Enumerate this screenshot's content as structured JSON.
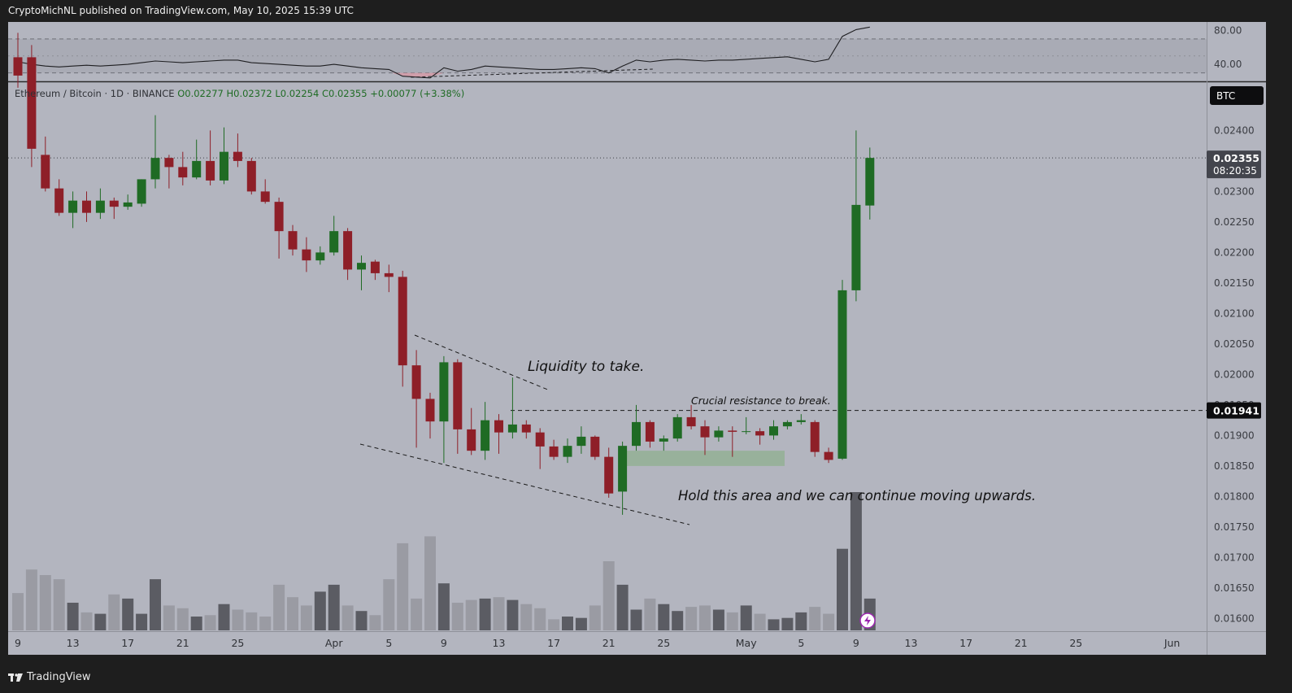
{
  "header": {
    "published_text": "CryptoMichNL published on TradingView.com, May 10, 2025 15:39 UTC"
  },
  "footer": {
    "logo_text": "TradingView"
  },
  "colors": {
    "background": "#b3b5bf",
    "bull": "#1f6b24",
    "bear": "#8e1f28",
    "vol_bull": "#5b5c63",
    "vol_bear": "#9a9ba3",
    "hold_zone": "#8fb08f"
  },
  "chart_data": {
    "type": "candlestick",
    "legend": {
      "symbol": "Ethereum / Bitcoin · 1D · BINANCE",
      "open": "O0.02277",
      "high": "H0.02372",
      "low": "L0.02254",
      "close": "C0.02355",
      "change": "+0.00077 (+3.38%)"
    },
    "currency_badge": "BTC",
    "last_price": {
      "value": "0.02355",
      "countdown": "08:20:35"
    },
    "level_label": {
      "value": 0.01941,
      "text": "0.01941"
    },
    "price_axis": {
      "ylim": [
        0.0157,
        0.0259
      ],
      "ticks": [
        "0.02400",
        "0.02350",
        "0.02300",
        "0.02250",
        "0.02200",
        "0.02150",
        "0.02100",
        "0.02050",
        "0.02000",
        "0.01950",
        "0.01900",
        "0.01850",
        "0.01800",
        "0.01750",
        "0.01700",
        "0.01650",
        "0.01600"
      ]
    },
    "x_axis": {
      "ticks": [
        {
          "index": 0,
          "label": "9"
        },
        {
          "index": 4,
          "label": "13"
        },
        {
          "index": 8,
          "label": "17"
        },
        {
          "index": 12,
          "label": "21"
        },
        {
          "index": 16,
          "label": "25"
        },
        {
          "index": 23,
          "label": "Apr"
        },
        {
          "index": 27,
          "label": "5"
        },
        {
          "index": 31,
          "label": "9"
        },
        {
          "index": 35,
          "label": "13"
        },
        {
          "index": 39,
          "label": "17"
        },
        {
          "index": 43,
          "label": "21"
        },
        {
          "index": 47,
          "label": "25"
        },
        {
          "index": 53,
          "label": "May"
        },
        {
          "index": 57,
          "label": "5"
        },
        {
          "index": 61,
          "label": "9"
        },
        {
          "index": 65,
          "label": "13"
        },
        {
          "index": 69,
          "label": "17"
        },
        {
          "index": 73,
          "label": "21"
        },
        {
          "index": 77,
          "label": "25"
        },
        {
          "index": 84,
          "label": "Jun"
        }
      ]
    },
    "candles": [
      {
        "o": 0.0252,
        "h": 0.0256,
        "l": 0.0247,
        "c": 0.0249
      },
      {
        "o": 0.0252,
        "h": 0.0254,
        "l": 0.0234,
        "c": 0.0237
      },
      {
        "o": 0.0236,
        "h": 0.0239,
        "l": 0.023,
        "c": 0.02305
      },
      {
        "o": 0.02305,
        "h": 0.0232,
        "l": 0.0226,
        "c": 0.02265
      },
      {
        "o": 0.02265,
        "h": 0.023,
        "l": 0.0224,
        "c": 0.02285
      },
      {
        "o": 0.02285,
        "h": 0.023,
        "l": 0.0225,
        "c": 0.02265
      },
      {
        "o": 0.02265,
        "h": 0.02305,
        "l": 0.02255,
        "c": 0.02285
      },
      {
        "o": 0.02285,
        "h": 0.0229,
        "l": 0.02255,
        "c": 0.02275
      },
      {
        "o": 0.02275,
        "h": 0.02295,
        "l": 0.0227,
        "c": 0.02282
      },
      {
        "o": 0.0228,
        "h": 0.0232,
        "l": 0.02275,
        "c": 0.0232
      },
      {
        "o": 0.0232,
        "h": 0.02425,
        "l": 0.02305,
        "c": 0.02355
      },
      {
        "o": 0.02355,
        "h": 0.0236,
        "l": 0.02305,
        "c": 0.0234
      },
      {
        "o": 0.0234,
        "h": 0.02365,
        "l": 0.0231,
        "c": 0.02323
      },
      {
        "o": 0.02323,
        "h": 0.02385,
        "l": 0.0232,
        "c": 0.0235
      },
      {
        "o": 0.0235,
        "h": 0.024,
        "l": 0.0231,
        "c": 0.02318
      },
      {
        "o": 0.02318,
        "h": 0.02405,
        "l": 0.02312,
        "c": 0.02365
      },
      {
        "o": 0.02365,
        "h": 0.02395,
        "l": 0.0234,
        "c": 0.0235
      },
      {
        "o": 0.0235,
        "h": 0.02355,
        "l": 0.02295,
        "c": 0.023
      },
      {
        "o": 0.023,
        "h": 0.0232,
        "l": 0.0228,
        "c": 0.02283
      },
      {
        "o": 0.02283,
        "h": 0.0229,
        "l": 0.0219,
        "c": 0.02235
      },
      {
        "o": 0.02235,
        "h": 0.02245,
        "l": 0.02195,
        "c": 0.02205
      },
      {
        "o": 0.02205,
        "h": 0.02225,
        "l": 0.02168,
        "c": 0.02187
      },
      {
        "o": 0.02187,
        "h": 0.0221,
        "l": 0.0218,
        "c": 0.022
      },
      {
        "o": 0.022,
        "h": 0.0226,
        "l": 0.02195,
        "c": 0.02235
      },
      {
        "o": 0.02235,
        "h": 0.0224,
        "l": 0.02155,
        "c": 0.02172
      },
      {
        "o": 0.02172,
        "h": 0.02195,
        "l": 0.02138,
        "c": 0.02183
      },
      {
        "o": 0.02185,
        "h": 0.02188,
        "l": 0.02155,
        "c": 0.02166
      },
      {
        "o": 0.02166,
        "h": 0.0218,
        "l": 0.02135,
        "c": 0.0216
      },
      {
        "o": 0.0216,
        "h": 0.0217,
        "l": 0.0198,
        "c": 0.02015
      },
      {
        "o": 0.02015,
        "h": 0.0204,
        "l": 0.0188,
        "c": 0.0196
      },
      {
        "o": 0.0196,
        "h": 0.0197,
        "l": 0.01895,
        "c": 0.01923
      },
      {
        "o": 0.01923,
        "h": 0.0203,
        "l": 0.01855,
        "c": 0.0202
      },
      {
        "o": 0.0202,
        "h": 0.02025,
        "l": 0.0187,
        "c": 0.0191
      },
      {
        "o": 0.0191,
        "h": 0.01945,
        "l": 0.01868,
        "c": 0.01875
      },
      {
        "o": 0.01875,
        "h": 0.01955,
        "l": 0.0186,
        "c": 0.01925
      },
      {
        "o": 0.01925,
        "h": 0.01935,
        "l": 0.0187,
        "c": 0.01905
      },
      {
        "o": 0.01905,
        "h": 0.01995,
        "l": 0.01895,
        "c": 0.01918
      },
      {
        "o": 0.01918,
        "h": 0.01925,
        "l": 0.01895,
        "c": 0.01905
      },
      {
        "o": 0.01905,
        "h": 0.01912,
        "l": 0.01845,
        "c": 0.01882
      },
      {
        "o": 0.01882,
        "h": 0.01893,
        "l": 0.0186,
        "c": 0.01865
      },
      {
        "o": 0.01865,
        "h": 0.01895,
        "l": 0.01855,
        "c": 0.01883
      },
      {
        "o": 0.01883,
        "h": 0.01915,
        "l": 0.0187,
        "c": 0.01898
      },
      {
        "o": 0.01898,
        "h": 0.019,
        "l": 0.0186,
        "c": 0.01865
      },
      {
        "o": 0.01865,
        "h": 0.0188,
        "l": 0.01798,
        "c": 0.01805
      },
      {
        "o": 0.01808,
        "h": 0.0189,
        "l": 0.0177,
        "c": 0.01883
      },
      {
        "o": 0.01883,
        "h": 0.0195,
        "l": 0.01875,
        "c": 0.01922
      },
      {
        "o": 0.01922,
        "h": 0.01925,
        "l": 0.0188,
        "c": 0.0189
      },
      {
        "o": 0.0189,
        "h": 0.019,
        "l": 0.01875,
        "c": 0.01895
      },
      {
        "o": 0.01895,
        "h": 0.01935,
        "l": 0.0189,
        "c": 0.0193
      },
      {
        "o": 0.0193,
        "h": 0.0195,
        "l": 0.0191,
        "c": 0.01915
      },
      {
        "o": 0.01915,
        "h": 0.01925,
        "l": 0.01868,
        "c": 0.01897
      },
      {
        "o": 0.01897,
        "h": 0.01915,
        "l": 0.0189,
        "c": 0.01908
      },
      {
        "o": 0.01908,
        "h": 0.01915,
        "l": 0.01865,
        "c": 0.01906
      },
      {
        "o": 0.01906,
        "h": 0.0193,
        "l": 0.01902,
        "c": 0.01907
      },
      {
        "o": 0.01907,
        "h": 0.01912,
        "l": 0.01885,
        "c": 0.019
      },
      {
        "o": 0.019,
        "h": 0.01925,
        "l": 0.01893,
        "c": 0.01915
      },
      {
        "o": 0.01915,
        "h": 0.01925,
        "l": 0.0191,
        "c": 0.01922
      },
      {
        "o": 0.01922,
        "h": 0.01935,
        "l": 0.01918,
        "c": 0.01925
      },
      {
        "o": 0.01922,
        "h": 0.01925,
        "l": 0.01865,
        "c": 0.01873
      },
      {
        "o": 0.01873,
        "h": 0.0188,
        "l": 0.01855,
        "c": 0.0186
      },
      {
        "o": 0.01862,
        "h": 0.02155,
        "l": 0.0186,
        "c": 0.02138
      },
      {
        "o": 0.02138,
        "h": 0.024,
        "l": 0.0212,
        "c": 0.02278
      },
      {
        "o": 0.02277,
        "h": 0.02372,
        "l": 0.02254,
        "c": 0.02355
      }
    ],
    "volume": [
      0.27,
      0.44,
      0.4,
      0.37,
      0.2,
      0.13,
      0.12,
      0.26,
      0.23,
      0.12,
      0.37,
      0.18,
      0.16,
      0.1,
      0.11,
      0.19,
      0.15,
      0.13,
      0.1,
      0.33,
      0.24,
      0.18,
      0.28,
      0.33,
      0.18,
      0.14,
      0.11,
      0.37,
      0.63,
      0.23,
      0.68,
      0.34,
      0.2,
      0.22,
      0.23,
      0.24,
      0.22,
      0.19,
      0.16,
      0.08,
      0.1,
      0.09,
      0.18,
      0.5,
      0.33,
      0.15,
      0.23,
      0.19,
      0.14,
      0.17,
      0.18,
      0.15,
      0.13,
      0.18,
      0.12,
      0.08,
      0.09,
      0.13,
      0.17,
      0.12,
      0.59,
      1.0,
      0.23
    ],
    "rsi": {
      "ticks": [
        "80.00",
        "40.00"
      ],
      "ylim": [
        20,
        90
      ],
      "band": [
        30,
        70
      ],
      "values": [
        43,
        40,
        38,
        37,
        38,
        39,
        38,
        39,
        40,
        42,
        44,
        43,
        42,
        43,
        44,
        45,
        45,
        42,
        41,
        40,
        39,
        38,
        38,
        40,
        38,
        36,
        35,
        34,
        26,
        25,
        24,
        36,
        32,
        34,
        38,
        37,
        36,
        35,
        34,
        34,
        35,
        36,
        35,
        30,
        38,
        45,
        43,
        45,
        46,
        45,
        44,
        45,
        45,
        46,
        47,
        48,
        49,
        46,
        43,
        46,
        73,
        81,
        84
      ]
    },
    "annotations": [
      {
        "text": "Liquidity to take."
      },
      {
        "text": "Crucial resistance to break."
      },
      {
        "text": "Hold this area and we can continue moving upwards."
      }
    ]
  }
}
